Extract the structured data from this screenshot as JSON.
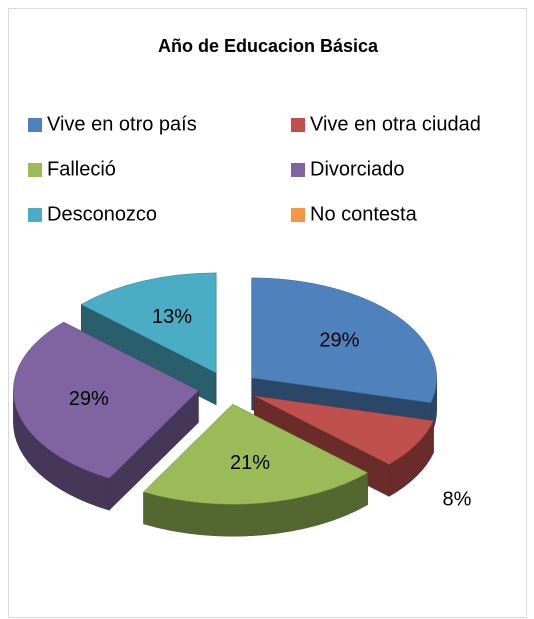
{
  "chart_data": {
    "type": "pie3d",
    "title": "Año de Educacion Básica",
    "categories": [
      "Vive en otro país",
      "Vive en otra ciudad",
      "Falleció",
      "Divorciado",
      "Desconozco",
      "No contesta"
    ],
    "series": [
      {
        "name": "Año de Educacion Básica",
        "colors": [
          "#4f81bd",
          "#c0504d",
          "#9bbb59",
          "#8064a2",
          "#4bacc6",
          "#f79646"
        ],
        "values": [
          29,
          8,
          21,
          29,
          13,
          0
        ],
        "value_labels": [
          "29%",
          "8%",
          "21%",
          "29%",
          "13%",
          null
        ]
      }
    ]
  }
}
